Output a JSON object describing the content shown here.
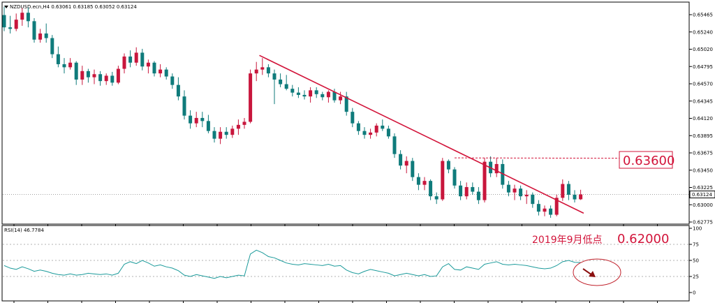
{
  "header": {
    "symbol_line": "NZDUSD.ecn,H4  0.63061 0.63185 0.63052 0.63124",
    "rsi_label": "RSI(14) 46.7784"
  },
  "price_axis": {
    "ticks": [
      "0.65465",
      "0.65240",
      "0.65020",
      "0.64795",
      "0.64570",
      "0.64345",
      "0.64120",
      "0.63895",
      "0.63675",
      "0.63450",
      "0.63225",
      "0.63000",
      "0.62775"
    ],
    "current_price": "0.63124"
  },
  "rsi_axis": {
    "ticks": [
      "100",
      "75",
      "50",
      "25",
      "0"
    ]
  },
  "annotations": {
    "resistance_value": "0.63600",
    "low_note": "2019年9月低点",
    "low_value": "0.62000"
  },
  "colors": {
    "bull": "#c8163c",
    "bear": "#0f7b7b",
    "trendline": "#d2143a",
    "rsi_line": "#1a9a9a",
    "arrow": "#8b1010"
  },
  "chart_data": [
    {
      "type": "candlestick",
      "title": "NZDUSD.ecn,H4",
      "ylim": [
        0.62775,
        0.65575
      ],
      "last": {
        "open": 0.63061,
        "high": 0.63185,
        "low": 0.63052,
        "close": 0.63124
      },
      "ohlc": [
        [
          0.6546,
          0.6557,
          0.6525,
          0.653
        ],
        [
          0.653,
          0.6545,
          0.6522,
          0.6528
        ],
        [
          0.6528,
          0.6548,
          0.6525,
          0.654
        ],
        [
          0.654,
          0.6555,
          0.6532,
          0.6549
        ],
        [
          0.6549,
          0.6556,
          0.653,
          0.6538
        ],
        [
          0.6538,
          0.6542,
          0.651,
          0.6514
        ],
        [
          0.6514,
          0.6528,
          0.651,
          0.6522
        ],
        [
          0.6522,
          0.6535,
          0.651,
          0.6516
        ],
        [
          0.6516,
          0.652,
          0.649,
          0.6495
        ],
        [
          0.6495,
          0.6505,
          0.6478,
          0.6482
        ],
        [
          0.6482,
          0.649,
          0.647,
          0.6478
        ],
        [
          0.6478,
          0.649,
          0.6475,
          0.6484
        ],
        [
          0.6484,
          0.6486,
          0.6455,
          0.6462
        ],
        [
          0.6462,
          0.648,
          0.6455,
          0.6473
        ],
        [
          0.6473,
          0.6476,
          0.6458,
          0.6465
        ],
        [
          0.6465,
          0.6475,
          0.6456,
          0.6469
        ],
        [
          0.6469,
          0.6473,
          0.6454,
          0.646
        ],
        [
          0.646,
          0.647,
          0.6455,
          0.6467
        ],
        [
          0.6467,
          0.6472,
          0.6454,
          0.6458
        ],
        [
          0.6458,
          0.648,
          0.6456,
          0.6476
        ],
        [
          0.6476,
          0.6496,
          0.647,
          0.6492
        ],
        [
          0.6492,
          0.65,
          0.6478,
          0.6484
        ],
        [
          0.6484,
          0.6504,
          0.648,
          0.6497
        ],
        [
          0.6497,
          0.6502,
          0.6474,
          0.6479
        ],
        [
          0.6479,
          0.6488,
          0.647,
          0.6484
        ],
        [
          0.6484,
          0.6486,
          0.6466,
          0.647
        ],
        [
          0.647,
          0.6482,
          0.6465,
          0.6475
        ],
        [
          0.6475,
          0.6478,
          0.6462,
          0.6466
        ],
        [
          0.6466,
          0.647,
          0.645,
          0.6455
        ],
        [
          0.6455,
          0.6465,
          0.6435,
          0.644
        ],
        [
          0.644,
          0.6448,
          0.641,
          0.6415
        ],
        [
          0.6415,
          0.6422,
          0.6398,
          0.6405
        ],
        [
          0.6405,
          0.642,
          0.64,
          0.6412
        ],
        [
          0.6412,
          0.642,
          0.64,
          0.6408
        ],
        [
          0.6408,
          0.6416,
          0.6392,
          0.6395
        ],
        [
          0.6395,
          0.64,
          0.638,
          0.6385
        ],
        [
          0.6385,
          0.64,
          0.6378,
          0.6394
        ],
        [
          0.6394,
          0.64,
          0.6385,
          0.639
        ],
        [
          0.639,
          0.6402,
          0.6386,
          0.6398
        ],
        [
          0.6398,
          0.641,
          0.639,
          0.6403
        ],
        [
          0.6403,
          0.6412,
          0.6398,
          0.6407
        ],
        [
          0.6407,
          0.6475,
          0.6405,
          0.647
        ],
        [
          0.647,
          0.6485,
          0.646,
          0.6475
        ],
        [
          0.6475,
          0.649,
          0.6468,
          0.6478
        ],
        [
          0.6478,
          0.6482,
          0.6465,
          0.647
        ],
        [
          0.647,
          0.6475,
          0.643,
          0.6462
        ],
        [
          0.6462,
          0.647,
          0.6452,
          0.6456
        ],
        [
          0.6456,
          0.6468,
          0.6448,
          0.645
        ],
        [
          0.645,
          0.6455,
          0.644,
          0.6445
        ],
        [
          0.6445,
          0.6452,
          0.6438,
          0.6442
        ],
        [
          0.6442,
          0.6448,
          0.6436,
          0.644
        ],
        [
          0.644,
          0.6452,
          0.6432,
          0.6448
        ],
        [
          0.6448,
          0.6452,
          0.6438,
          0.6443
        ],
        [
          0.6443,
          0.6446,
          0.6435,
          0.6439
        ],
        [
          0.6439,
          0.6448,
          0.6432,
          0.6446
        ],
        [
          0.6446,
          0.645,
          0.6432,
          0.6435
        ],
        [
          0.6435,
          0.6446,
          0.643,
          0.644
        ],
        [
          0.644,
          0.6446,
          0.6415,
          0.642
        ],
        [
          0.642,
          0.6425,
          0.64,
          0.6405
        ],
        [
          0.6405,
          0.6408,
          0.639,
          0.6395
        ],
        [
          0.6395,
          0.64,
          0.6385,
          0.639
        ],
        [
          0.639,
          0.6398,
          0.6385,
          0.6393
        ],
        [
          0.6393,
          0.6405,
          0.6388,
          0.6402
        ],
        [
          0.6402,
          0.641,
          0.6395,
          0.6398
        ],
        [
          0.6398,
          0.6402,
          0.6385,
          0.6388
        ],
        [
          0.6388,
          0.6392,
          0.636,
          0.6365
        ],
        [
          0.6365,
          0.637,
          0.6345,
          0.635
        ],
        [
          0.635,
          0.6362,
          0.634,
          0.6356
        ],
        [
          0.6356,
          0.636,
          0.633,
          0.6335
        ],
        [
          0.6335,
          0.634,
          0.6318,
          0.6325
        ],
        [
          0.6325,
          0.6335,
          0.6318,
          0.633
        ],
        [
          0.633,
          0.6332,
          0.6305,
          0.631
        ],
        [
          0.631,
          0.6315,
          0.63,
          0.6306
        ],
        [
          0.6306,
          0.636,
          0.6304,
          0.6356
        ],
        [
          0.6356,
          0.6358,
          0.634,
          0.6345
        ],
        [
          0.6345,
          0.6348,
          0.632,
          0.6324
        ],
        [
          0.6324,
          0.633,
          0.6305,
          0.631
        ],
        [
          0.631,
          0.6328,
          0.6306,
          0.6322
        ],
        [
          0.6322,
          0.6328,
          0.6312,
          0.6316
        ],
        [
          0.6316,
          0.6322,
          0.63,
          0.6305
        ],
        [
          0.6305,
          0.636,
          0.6302,
          0.6355
        ],
        [
          0.6355,
          0.6362,
          0.6335,
          0.634
        ],
        [
          0.634,
          0.636,
          0.6335,
          0.6352
        ],
        [
          0.6352,
          0.6358,
          0.632,
          0.6325
        ],
        [
          0.6325,
          0.633,
          0.631,
          0.6315
        ],
        [
          0.6315,
          0.6325,
          0.6305,
          0.632
        ],
        [
          0.632,
          0.6324,
          0.6305,
          0.631
        ],
        [
          0.631,
          0.6318,
          0.63,
          0.6312
        ],
        [
          0.6312,
          0.6315,
          0.6295,
          0.63
        ],
        [
          0.63,
          0.6305,
          0.6285,
          0.629
        ],
        [
          0.629,
          0.6298,
          0.6284,
          0.6294
        ],
        [
          0.6294,
          0.6298,
          0.6282,
          0.6286
        ],
        [
          0.6286,
          0.6312,
          0.6284,
          0.6308
        ],
        [
          0.6308,
          0.6332,
          0.6304,
          0.6326
        ],
        [
          0.6326,
          0.633,
          0.6305,
          0.6312
        ],
        [
          0.6312,
          0.6318,
          0.6302,
          0.6306
        ],
        [
          0.63061,
          0.63185,
          0.63052,
          0.63124
        ]
      ],
      "trendline": [
        [
          42.5,
          0.64935
        ],
        [
          96.5,
          0.6288
        ]
      ],
      "resistance": 0.636
    },
    {
      "type": "line",
      "title": "RSI(14) 46.7784",
      "ylim": [
        0,
        100
      ],
      "levels": [
        25,
        50,
        75
      ],
      "values": [
        42,
        38,
        36,
        40,
        37,
        33,
        35,
        33,
        30,
        28,
        27,
        29,
        27,
        28,
        30,
        29,
        28,
        29,
        27,
        30,
        44,
        48,
        45,
        50,
        46,
        41,
        43,
        40,
        38,
        34,
        27,
        25,
        28,
        26,
        24,
        22,
        25,
        23,
        25,
        27,
        26,
        60,
        66,
        62,
        56,
        54,
        50,
        46,
        44,
        43,
        45,
        44,
        43,
        42,
        44,
        41,
        42,
        35,
        31,
        29,
        33,
        36,
        34,
        32,
        30,
        26,
        28,
        30,
        28,
        26,
        28,
        25,
        26,
        40,
        45,
        36,
        35,
        40,
        38,
        36,
        44,
        46,
        48,
        44,
        43,
        44,
        43,
        42,
        40,
        38,
        37,
        38,
        42,
        48,
        50,
        47,
        46.78
      ]
    }
  ]
}
